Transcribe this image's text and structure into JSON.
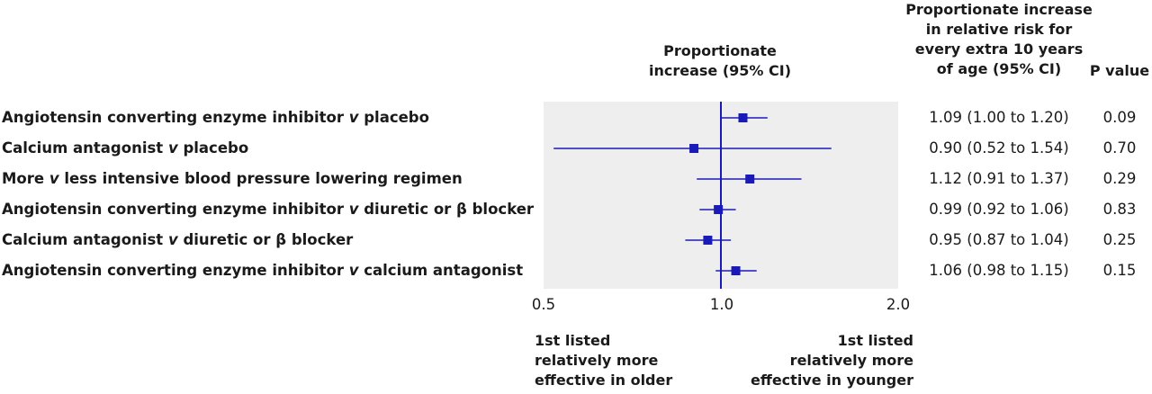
{
  "headers": {
    "estimate": [
      "Proportionate",
      "increase (95% CI)"
    ],
    "relative_risk": [
      "Proportionate increase",
      "in relative risk for",
      "every extra 10 years",
      "of age (95% CI)"
    ],
    "p_value": "P value"
  },
  "direction_labels": {
    "left": [
      "1st listed",
      "relatively more",
      "effective in older"
    ],
    "right": [
      "1st listed",
      "relatively more",
      "effective in younger"
    ]
  },
  "chart_data": {
    "type": "forest",
    "x_scale": "log",
    "xlim": [
      0.5,
      2.0
    ],
    "reference_value": 1.0,
    "x_ticks": [
      "0.5",
      "1.0",
      "2.0"
    ],
    "rows": [
      {
        "label_parts": [
          [
            "Angiotensin converting enzyme inhibitor ",
            "n"
          ],
          [
            "v",
            "i"
          ],
          [
            " placebo",
            "n"
          ]
        ],
        "estimate": 1.09,
        "lower": 1.0,
        "upper": 1.2,
        "ci_text": "1.09 (1.00 to 1.20)",
        "p": "0.09"
      },
      {
        "label_parts": [
          [
            "Calcium antagonist ",
            "n"
          ],
          [
            "v",
            "i"
          ],
          [
            " placebo",
            "n"
          ]
        ],
        "estimate": 0.9,
        "lower": 0.52,
        "upper": 1.54,
        "ci_text": "0.90 (0.52 to 1.54)",
        "p": "0.70"
      },
      {
        "label_parts": [
          [
            "More ",
            "n"
          ],
          [
            "v",
            "i"
          ],
          [
            " less intensive blood pressure lowering regimen",
            "n"
          ]
        ],
        "estimate": 1.12,
        "lower": 0.91,
        "upper": 1.37,
        "ci_text": "1.12 (0.91 to 1.37)",
        "p": "0.29"
      },
      {
        "label_parts": [
          [
            "Angiotensin converting enzyme inhibitor ",
            "n"
          ],
          [
            "v",
            "i"
          ],
          [
            " diuretic or β blocker",
            "n"
          ]
        ],
        "estimate": 0.99,
        "lower": 0.92,
        "upper": 1.06,
        "ci_text": "0.99 (0.92 to 1.06)",
        "p": "0.83"
      },
      {
        "label_parts": [
          [
            "Calcium antagonist ",
            "n"
          ],
          [
            "v",
            "i"
          ],
          [
            " diuretic or β blocker",
            "n"
          ]
        ],
        "estimate": 0.95,
        "lower": 0.87,
        "upper": 1.04,
        "ci_text": "0.95 (0.87 to 1.04)",
        "p": "0.25"
      },
      {
        "label_parts": [
          [
            "Angiotensin converting enzyme inhibitor ",
            "n"
          ],
          [
            "v",
            "i"
          ],
          [
            " calcium antagonist",
            "n"
          ]
        ],
        "estimate": 1.06,
        "lower": 0.98,
        "upper": 1.15,
        "ci_text": "1.06 (0.98 to 1.15)",
        "p": "0.15"
      }
    ],
    "colors": {
      "panel": "#eeeeee",
      "marker": "#1a1ab8",
      "reference": "#1a1ab8"
    }
  }
}
